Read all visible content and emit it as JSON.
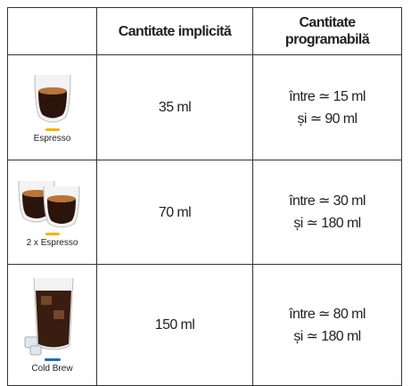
{
  "table": {
    "header": [
      "Cantitate implicită",
      "Cantitate programabilă"
    ],
    "rows": [
      {
        "drink": "Espresso",
        "default": "35 ml",
        "programmable": [
          "între ≃ 15 ml",
          "și ≃ 90 ml"
        ]
      },
      {
        "drink": "2 x Espresso",
        "default": "70 ml",
        "programmable": [
          "între ≃ 30 ml",
          "și ≃ 180 ml"
        ]
      },
      {
        "drink": "Cold Brew",
        "default": "150 ml",
        "programmable": [
          "între ≃ 80 ml",
          "și ≃ 180 ml"
        ]
      }
    ]
  }
}
